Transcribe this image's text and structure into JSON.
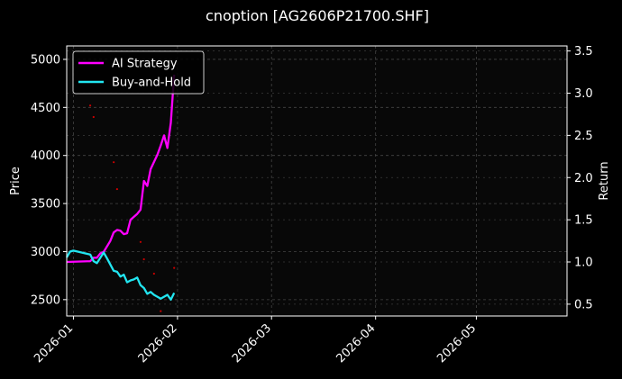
{
  "chart_data": {
    "type": "line",
    "title": "cnoption [AG2606P21700.SHF]",
    "ylabel_left": "Price",
    "ylabel_right": "Return",
    "xlim": [
      "2025-12-30",
      "2026-05-28"
    ],
    "ylim_left": [
      2330,
      5140
    ],
    "ylim_right": [
      0.36,
      3.56
    ],
    "x_ticks": [
      "2026-01",
      "2026-02",
      "2026-03",
      "2026-04",
      "2026-05"
    ],
    "y_ticks_left": [
      2500,
      3000,
      3500,
      4000,
      4500,
      5000
    ],
    "y_ticks_right": [
      0.5,
      1.0,
      1.5,
      2.0,
      2.5,
      3.0,
      3.5
    ],
    "grid": true,
    "legend_position": "top-left",
    "series": [
      {
        "name": "AI Strategy",
        "axis": "right",
        "color": "#ff00ff",
        "points": [
          [
            "2025-12-30",
            1.0
          ],
          [
            "2026-01-06",
            1.01
          ],
          [
            "2026-01-07",
            1.05
          ],
          [
            "2026-01-08",
            1.05
          ],
          [
            "2026-01-09",
            1.1
          ],
          [
            "2026-01-10",
            1.12
          ],
          [
            "2026-01-12",
            1.25
          ],
          [
            "2026-01-13",
            1.35
          ],
          [
            "2026-01-14",
            1.38
          ],
          [
            "2026-01-15",
            1.37
          ],
          [
            "2026-01-16",
            1.33
          ],
          [
            "2026-01-17",
            1.34
          ],
          [
            "2026-01-18",
            1.5
          ],
          [
            "2026-01-20",
            1.57
          ],
          [
            "2026-01-21",
            1.62
          ],
          [
            "2026-01-22",
            1.96
          ],
          [
            "2026-01-23",
            1.9
          ],
          [
            "2026-01-24",
            2.1
          ],
          [
            "2026-01-26",
            2.27
          ],
          [
            "2026-01-27",
            2.38
          ],
          [
            "2026-01-28",
            2.5
          ],
          [
            "2026-01-29",
            2.35
          ],
          [
            "2026-01-30",
            2.65
          ],
          [
            "2026-01-31",
            3.22
          ]
        ]
      },
      {
        "name": "Buy-and-Hold",
        "axis": "left",
        "color": "#22e5f0",
        "points": [
          [
            "2025-12-30",
            2940
          ],
          [
            "2025-12-31",
            3000
          ],
          [
            "2026-01-01",
            3010
          ],
          [
            "2026-01-06",
            2970
          ],
          [
            "2026-01-07",
            2900
          ],
          [
            "2026-01-08",
            2880
          ],
          [
            "2026-01-10",
            2990
          ],
          [
            "2026-01-11",
            2930
          ],
          [
            "2026-01-13",
            2800
          ],
          [
            "2026-01-14",
            2790
          ],
          [
            "2026-01-15",
            2740
          ],
          [
            "2026-01-16",
            2760
          ],
          [
            "2026-01-17",
            2680
          ],
          [
            "2026-01-18",
            2700
          ],
          [
            "2026-01-19",
            2710
          ],
          [
            "2026-01-20",
            2730
          ],
          [
            "2026-01-21",
            2650
          ],
          [
            "2026-01-22",
            2620
          ],
          [
            "2026-01-23",
            2560
          ],
          [
            "2026-01-24",
            2580
          ],
          [
            "2026-01-25",
            2550
          ],
          [
            "2026-01-27",
            2510
          ],
          [
            "2026-01-29",
            2550
          ],
          [
            "2026-01-30",
            2500
          ],
          [
            "2026-01-31",
            2570
          ]
        ]
      }
    ],
    "markers": {
      "color": "#cc0000",
      "axis": "left",
      "points": [
        [
          "2026-01-06",
          4520
        ],
        [
          "2026-01-07",
          4400
        ],
        [
          "2026-01-13",
          3930
        ],
        [
          "2026-01-14",
          3650
        ],
        [
          "2026-01-21",
          3100
        ],
        [
          "2026-01-22",
          2920
        ],
        [
          "2026-01-25",
          2770
        ],
        [
          "2026-01-27",
          2380
        ],
        [
          "2026-01-31",
          2830
        ]
      ]
    }
  }
}
